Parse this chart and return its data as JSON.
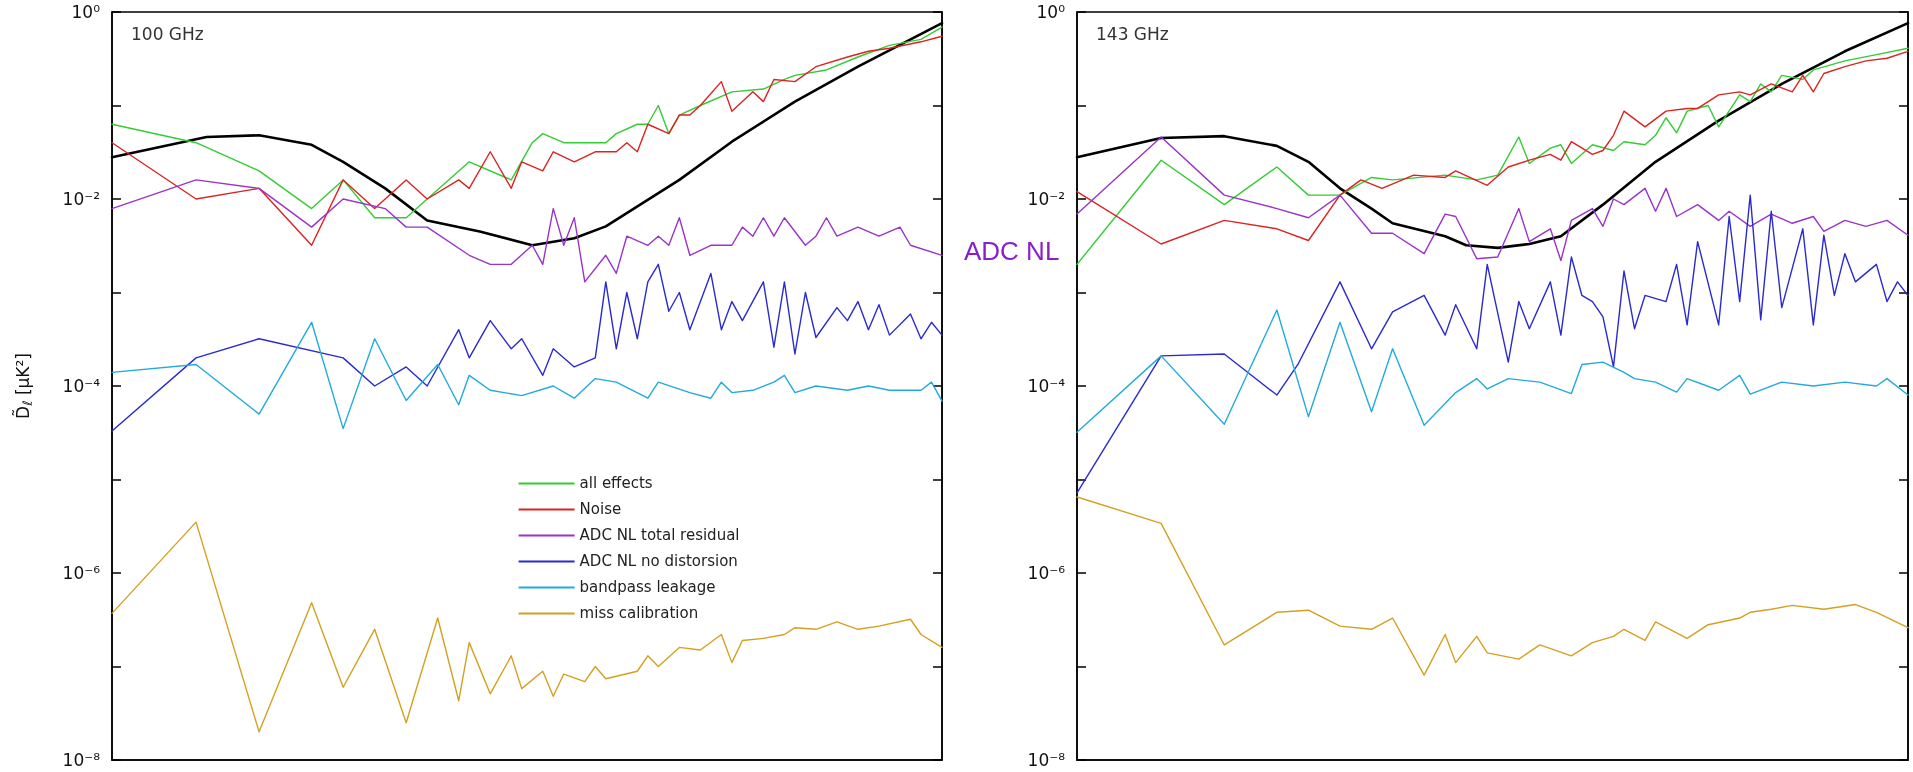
{
  "chart_data": [
    {
      "type": "line",
      "title": "100 GHz",
      "ylabel": "D̃$_{ℓ}$ [μK²]",
      "categories": [
        null,
        null,
        null,
        null,
        null,
        null,
        null,
        null,
        null,
        null,
        null,
        null,
        null,
        null,
        null,
        null,
        null,
        null,
        null,
        null,
        null,
        null,
        null,
        null,
        null,
        null,
        null,
        null,
        null,
        null,
        null,
        null,
        null,
        null,
        null,
        null,
        null,
        null,
        null,
        null,
        null,
        null,
        null,
        null,
        null,
        null,
        null,
        null,
        null,
        null,
        null,
        null,
        null,
        null,
        null,
        null,
        null,
        null,
        null,
        null,
        null,
        null,
        null,
        null,
        null,
        null,
        null,
        null,
        null,
        null,
        null,
        null,
        null,
        null,
        null,
        null,
        null,
        null,
        null,
        null
      ],
      "series": [
        {
          "color": "#000000",
          "values": [
            0.028,
            null,
            null,
            null,
            null,
            null,
            null,
            null,
            null,
            0.046,
            null,
            null,
            null,
            null,
            0.048,
            null,
            null,
            null,
            null,
            0.038,
            null,
            null,
            0.025,
            null,
            null,
            null,
            0.013,
            null,
            null,
            null,
            0.0059,
            null,
            null,
            null,
            null,
            0.0045,
            null,
            null,
            null,
            null,
            0.0032,
            null,
            null,
            null,
            0.0038,
            null,
            null,
            0.0051,
            null,
            null,
            null,
            null,
            null,
            null,
            0.016,
            null,
            null,
            null,
            null,
            0.041,
            null,
            null,
            null,
            null,
            null,
            0.11,
            null,
            null,
            null,
            null,
            null,
            0.26,
            null,
            null,
            null,
            null,
            null,
            null,
            null,
            0.76
          ]
        },
        {
          "name": "all effects",
          "color": "#33cc33",
          "values": [
            0.063,
            null,
            null,
            null,
            null,
            null,
            null,
            null,
            0.04,
            null,
            null,
            null,
            null,
            null,
            0.02,
            null,
            null,
            null,
            null,
            0.0079,
            null,
            null,
            0.016,
            null,
            null,
            0.0063,
            null,
            null,
            0.0063,
            null,
            0.01,
            null,
            null,
            null,
            0.025,
            null,
            null,
            null,
            0.016,
            null,
            0.04,
            0.05,
            null,
            0.04,
            null,
            0.04,
            null,
            0.04,
            0.05,
            null,
            0.063,
            0.063,
            0.1,
            0.05,
            0.079,
            null,
            0.1,
            null,
            null,
            0.14,
            null,
            null,
            0.15,
            null,
            0.19,
            0.21,
            null,
            null,
            0.24,
            null,
            null,
            0.33,
            null,
            null,
            0.44,
            null,
            null,
            0.51,
            null,
            0.69
          ]
        },
        {
          "name": "Noise",
          "color": "#dd2222",
          "values": [
            0.04,
            null,
            null,
            null,
            null,
            null,
            null,
            null,
            0.01,
            null,
            null,
            null,
            null,
            null,
            0.013,
            null,
            null,
            null,
            null,
            0.0032,
            null,
            null,
            0.016,
            null,
            null,
            0.0079,
            null,
            null,
            0.016,
            null,
            0.01,
            null,
            null,
            0.016,
            0.013,
            null,
            0.032,
            null,
            0.013,
            0.025,
            null,
            0.02,
            0.032,
            null,
            0.025,
            null,
            0.032,
            null,
            0.032,
            0.04,
            0.032,
            0.063,
            null,
            0.05,
            0.079,
            0.079,
            0.1,
            null,
            0.18,
            0.087,
            null,
            0.14,
            0.11,
            0.19,
            null,
            0.18,
            null,
            0.26,
            null,
            null,
            0.33,
            null,
            0.38,
            null,
            0.41,
            null,
            null,
            0.48,
            null,
            0.55
          ]
        },
        {
          "name": "ADC NL total residual",
          "color": "#9933cc",
          "values": [
            0.0079,
            null,
            null,
            null,
            null,
            null,
            null,
            null,
            0.016,
            null,
            null,
            null,
            null,
            null,
            0.013,
            null,
            null,
            null,
            null,
            0.005,
            null,
            null,
            0.01,
            null,
            null,
            null,
            0.0079,
            null,
            0.005,
            null,
            0.005,
            null,
            null,
            null,
            0.0025,
            null,
            0.002,
            null,
            0.002,
            null,
            0.0032,
            0.002,
            0.0079,
            0.0032,
            0.0063,
            0.0013,
            null,
            0.0025,
            0.0016,
            0.004,
            null,
            0.0032,
            0.004,
            0.0032,
            0.0063,
            0.0025,
            null,
            0.0032,
            null,
            0.0032,
            0.005,
            0.004,
            0.0063,
            0.004,
            0.0063,
            null,
            0.0032,
            0.004,
            0.0063,
            0.004,
            null,
            0.005,
            null,
            0.004,
            null,
            0.005,
            0.0032,
            null,
            null,
            0.0025
          ]
        },
        {
          "name": "ADC NL no distorsion",
          "color": "#2a2ad0",
          "values": [
            3.3e-05,
            null,
            null,
            null,
            null,
            null,
            null,
            null,
            0.0002,
            null,
            null,
            null,
            null,
            null,
            0.00032,
            null,
            null,
            null,
            null,
            null,
            null,
            null,
            0.0002,
            null,
            null,
            0.0001,
            null,
            null,
            0.00016,
            null,
            0.0001,
            null,
            null,
            0.0004,
            0.0002,
            null,
            0.0005,
            null,
            0.00025,
            0.00032,
            null,
            0.00013,
            0.00025,
            null,
            0.00016,
            null,
            0.0002,
            0.0013,
            0.00025,
            0.001,
            0.00032,
            0.0013,
            0.002,
            0.00063,
            0.001,
            0.0004,
            null,
            0.0016,
            0.0004,
            0.0008,
            0.0005,
            null,
            0.0013,
            0.00026,
            0.0013,
            0.00022,
            0.001,
            0.00033,
            null,
            0.00069,
            0.0005,
            0.0008,
            0.0004,
            0.00074,
            0.00035,
            null,
            0.00059,
            0.00032,
            0.00048,
            0.00035
          ]
        },
        {
          "name": "bandpass leakage",
          "color": "#22aadd",
          "values": [
            0.00014,
            null,
            null,
            null,
            null,
            null,
            null,
            null,
            0.00017,
            null,
            null,
            null,
            null,
            null,
            5e-05,
            null,
            null,
            null,
            null,
            0.00048,
            null,
            null,
            3.5e-05,
            null,
            null,
            0.00032,
            null,
            null,
            7e-05,
            null,
            null,
            0.00017,
            null,
            6.3e-05,
            0.00013,
            null,
            9e-05,
            null,
            null,
            7.9e-05,
            null,
            null,
            0.0001,
            null,
            7.4e-05,
            null,
            0.00012,
            null,
            0.00011,
            null,
            null,
            7.4e-05,
            0.00011,
            null,
            null,
            8.5e-05,
            null,
            7.4e-05,
            0.00011,
            8.5e-05,
            null,
            9e-05,
            null,
            0.00011,
            0.00013,
            8.5e-05,
            null,
            0.0001,
            null,
            null,
            9e-05,
            null,
            0.0001,
            null,
            9e-05,
            null,
            null,
            9e-05,
            0.00011,
            6.9e-05
          ]
        },
        {
          "name": "miss calibration",
          "color": "#d4a020",
          "values": [
            3.7e-07,
            null,
            null,
            null,
            null,
            null,
            null,
            null,
            3.5e-06,
            null,
            null,
            null,
            null,
            null,
            2e-08,
            null,
            null,
            null,
            null,
            4.8e-07,
            null,
            null,
            6e-08,
            null,
            null,
            2.5e-07,
            null,
            null,
            2.5e-08,
            null,
            null,
            3.3e-07,
            null,
            4.3e-08,
            1.8e-07,
            null,
            5.1e-08,
            null,
            1.3e-07,
            5.8e-08,
            null,
            8.9e-08,
            4.8e-08,
            8.3e-08,
            null,
            6.9e-08,
            1e-07,
            7.4e-08,
            null,
            null,
            8.9e-08,
            1.3e-07,
            1e-07,
            null,
            1.6e-07,
            null,
            1.5e-07,
            null,
            2.2e-07,
            1.1e-07,
            1.9e-07,
            null,
            2e-07,
            null,
            2.2e-07,
            2.6e-07,
            null,
            2.5e-07,
            null,
            3e-07,
            null,
            2.5e-07,
            null,
            2.7e-07,
            null,
            null,
            3.2e-07,
            2.2e-07,
            null,
            1.6e-07
          ]
        }
      ],
      "ylim": [
        1e-08,
        1
      ],
      "yticks": [
        {
          "value": 1e-08,
          "label": "10⁻⁸"
        },
        {
          "value": 1e-07,
          "label": null
        },
        {
          "value": 1e-06,
          "label": "10⁻⁶"
        },
        {
          "value": 1e-05,
          "label": null
        },
        {
          "value": 0.0001,
          "label": "10⁻⁴"
        },
        {
          "value": 0.001,
          "label": null
        },
        {
          "value": 0.01,
          "label": "10⁻²"
        },
        {
          "value": 0.1,
          "label": null
        },
        {
          "value": 1,
          "label": "10⁰"
        }
      ],
      "log": "y",
      "tick_labels": "y",
      "legend": "bottom"
    },
    {
      "type": "line",
      "title": "143 GHz",
      "annotations": [
        "ADC NL"
      ],
      "categories": [
        null,
        null,
        null,
        null,
        null,
        null,
        null,
        null,
        null,
        null,
        null,
        null,
        null,
        null,
        null,
        null,
        null,
        null,
        null,
        null,
        null,
        null,
        null,
        null,
        null,
        null,
        null,
        null,
        null,
        null,
        null,
        null,
        null,
        null,
        null,
        null,
        null,
        null,
        null,
        null,
        null,
        null,
        null,
        null,
        null,
        null,
        null,
        null,
        null,
        null,
        null,
        null,
        null,
        null,
        null,
        null,
        null,
        null,
        null,
        null,
        null,
        null,
        null,
        null,
        null,
        null,
        null,
        null,
        null,
        null,
        null,
        null,
        null,
        null,
        null,
        null,
        null,
        null,
        null,
        null
      ],
      "series": [
        {
          "color": "#000000",
          "values": [
            0.028,
            null,
            null,
            null,
            null,
            null,
            null,
            null,
            0.045,
            null,
            null,
            null,
            null,
            null,
            0.047,
            null,
            null,
            null,
            null,
            0.037,
            null,
            null,
            0.025,
            null,
            null,
            0.013,
            null,
            null,
            0.0079,
            null,
            0.0055,
            null,
            null,
            null,
            null,
            0.004,
            null,
            0.0032,
            null,
            null,
            0.003,
            null,
            null,
            0.0033,
            null,
            null,
            0.004,
            null,
            null,
            null,
            0.0087,
            null,
            null,
            null,
            null,
            0.025,
            null,
            null,
            null,
            null,
            null,
            0.069,
            null,
            null,
            null,
            null,
            null,
            0.17,
            null,
            null,
            null,
            null,
            null,
            0.38,
            null,
            null,
            null,
            null,
            null,
            0.76
          ]
        },
        {
          "color": "#33cc33",
          "values": [
            0.002,
            null,
            null,
            null,
            null,
            null,
            null,
            null,
            0.026,
            null,
            null,
            null,
            null,
            null,
            0.0087,
            null,
            null,
            null,
            null,
            0.022,
            null,
            null,
            0.011,
            null,
            null,
            0.011,
            null,
            null,
            0.017,
            null,
            0.016,
            null,
            null,
            null,
            null,
            0.018,
            null,
            null,
            0.016,
            null,
            0.018,
            null,
            0.046,
            0.024,
            null,
            0.035,
            0.038,
            0.024,
            null,
            0.038,
            null,
            0.033,
            0.041,
            null,
            0.038,
            0.048,
            0.074,
            0.051,
            0.087,
            null,
            0.1,
            0.059,
            null,
            0.13,
            0.11,
            0.17,
            0.14,
            0.21,
            null,
            0.19,
            0.24,
            null,
            null,
            0.3,
            null,
            null,
            0.35,
            null,
            null,
            0.41
          ]
        },
        {
          "color": "#dd2222",
          "values": [
            0.012,
            null,
            null,
            null,
            null,
            null,
            null,
            null,
            0.0033,
            null,
            null,
            null,
            null,
            null,
            0.0059,
            null,
            null,
            null,
            null,
            0.0048,
            null,
            null,
            0.0036,
            null,
            null,
            0.011,
            null,
            0.016,
            null,
            0.013,
            null,
            null,
            0.018,
            null,
            null,
            0.017,
            0.02,
            null,
            null,
            0.014,
            null,
            0.022,
            null,
            0.026,
            null,
            0.03,
            0.026,
            0.041,
            null,
            0.03,
            0.033,
            0.048,
            0.087,
            null,
            0.059,
            null,
            0.087,
            null,
            0.093,
            0.093,
            null,
            0.13,
            null,
            0.14,
            0.13,
            null,
            0.17,
            null,
            0.14,
            0.21,
            0.14,
            0.22,
            null,
            0.26,
            null,
            0.3,
            null,
            0.32,
            null,
            0.38
          ]
        },
        {
          "color": "#9933cc",
          "values": [
            0.0069,
            null,
            null,
            null,
            null,
            null,
            null,
            null,
            0.046,
            null,
            null,
            null,
            null,
            null,
            0.011,
            null,
            null,
            null,
            null,
            0.0079,
            null,
            null,
            0.0063,
            null,
            null,
            0.011,
            null,
            null,
            0.0043,
            null,
            0.0043,
            null,
            null,
            0.0026,
            null,
            0.0069,
            0.0065,
            null,
            0.0023,
            null,
            0.0024,
            null,
            0.0079,
            0.0035,
            null,
            0.0048,
            0.0022,
            0.0059,
            null,
            0.0079,
            0.0051,
            0.01,
            0.0087,
            null,
            0.013,
            0.0074,
            0.013,
            0.0065,
            null,
            0.0087,
            null,
            0.0059,
            0.0074,
            null,
            0.0051,
            null,
            0.0069,
            null,
            0.0055,
            null,
            0.0065,
            0.0045,
            null,
            0.0059,
            null,
            0.0051,
            null,
            0.0059,
            null,
            0.0041
          ]
        },
        {
          "color": "#2a2ad0",
          "values": [
            7.2e-06,
            null,
            null,
            null,
            null,
            null,
            null,
            null,
            0.00021,
            null,
            null,
            null,
            null,
            null,
            0.00022,
            null,
            null,
            null,
            null,
            8e-05,
            null,
            0.00017,
            null,
            null,
            null,
            0.0013,
            null,
            null,
            0.00025,
            null,
            0.00062,
            null,
            null,
            0.00093,
            null,
            0.00035,
            0.00074,
            null,
            0.00025,
            0.002,
            null,
            0.00018,
            0.0008,
            0.00041,
            null,
            0.0013,
            0.00035,
            0.0024,
            0.00093,
            0.0008,
            0.00055,
            0.00016,
            0.0017,
            0.00041,
            0.00093,
            null,
            0.0008,
            0.002,
            0.00045,
            0.0035,
            null,
            0.00045,
            0.0065,
            0.0008,
            0.011,
            0.00051,
            0.0074,
            0.00069,
            null,
            0.0048,
            0.00045,
            0.0041,
            0.00093,
            0.0026,
            0.0013,
            null,
            0.002,
            0.0008,
            0.0013,
            0.00093
          ]
        },
        {
          "color": "#22aadd",
          "values": [
            3.2e-05,
            null,
            null,
            null,
            null,
            null,
            null,
            null,
            0.00021,
            null,
            null,
            null,
            null,
            null,
            3.9e-05,
            null,
            null,
            null,
            null,
            0.00065,
            null,
            null,
            4.7e-05,
            null,
            null,
            0.00048,
            null,
            null,
            5.3e-05,
            null,
            0.00025,
            null,
            null,
            3.8e-05,
            null,
            null,
            8.5e-05,
            null,
            0.00012,
            9.3e-05,
            null,
            0.00012,
            null,
            null,
            0.00011,
            null,
            null,
            8.3e-05,
            0.00017,
            null,
            0.00018,
            null,
            0.00014,
            0.00012,
            null,
            0.00011,
            null,
            8.6e-05,
            0.00012,
            null,
            null,
            9e-05,
            null,
            0.00013,
            8.2e-05,
            null,
            null,
            0.00011,
            null,
            null,
            0.0001,
            null,
            null,
            0.00011,
            null,
            null,
            0.0001,
            0.00012,
            null,
            8e-05
          ]
        },
        {
          "color": "#d4a020",
          "values": [
            6.5e-06,
            null,
            null,
            null,
            null,
            null,
            null,
            null,
            3.4e-06,
            null,
            null,
            null,
            null,
            null,
            1.7e-07,
            null,
            null,
            null,
            null,
            3.8e-07,
            null,
            null,
            4e-07,
            null,
            null,
            2.7e-07,
            null,
            null,
            2.5e-07,
            null,
            3.3e-07,
            null,
            null,
            8.1e-08,
            null,
            2.2e-07,
            1.1e-07,
            null,
            2.1e-07,
            1.4e-07,
            null,
            null,
            1.2e-07,
            null,
            1.7e-07,
            null,
            null,
            1.3e-07,
            null,
            1.8e-07,
            null,
            2.1e-07,
            2.5e-07,
            null,
            1.9e-07,
            3e-07,
            null,
            null,
            2e-07,
            null,
            2.8e-07,
            null,
            null,
            3.3e-07,
            3.8e-07,
            null,
            4.1e-07,
            null,
            4.5e-07,
            null,
            null,
            4.1e-07,
            null,
            null,
            4.6e-07,
            null,
            3.8e-07,
            null,
            null,
            2.6e-07
          ]
        }
      ],
      "ylim": [
        1e-08,
        1
      ],
      "yticks": [
        {
          "value": 1e-08,
          "label": "10⁻⁸"
        },
        {
          "value": 1e-07,
          "label": null
        },
        {
          "value": 1e-06,
          "label": "10⁻⁶"
        },
        {
          "value": 1e-05,
          "label": null
        },
        {
          "value": 0.0001,
          "label": "10⁻⁴"
        },
        {
          "value": 0.001,
          "label": null
        },
        {
          "value": 0.01,
          "label": "10⁻²"
        },
        {
          "value": 0.1,
          "label": null
        },
        {
          "value": 1,
          "label": "10⁰"
        }
      ],
      "log": "y",
      "tick_labels": "y"
    }
  ]
}
